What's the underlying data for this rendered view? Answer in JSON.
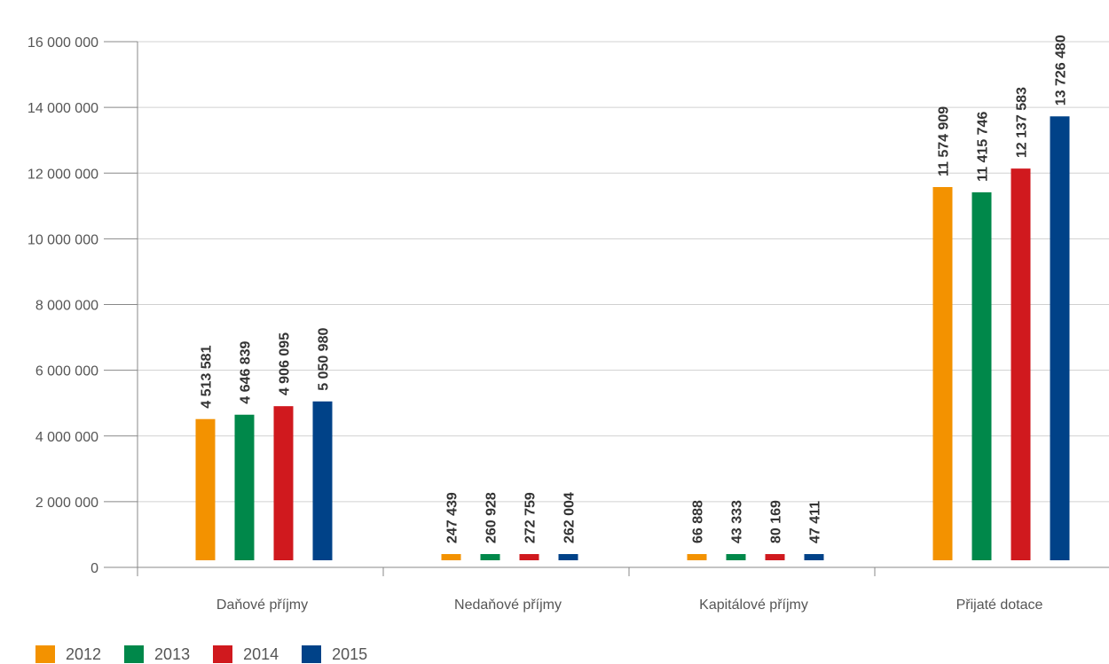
{
  "chart_data": {
    "type": "bar",
    "categories": [
      "Daňové příjmy",
      "Nedaňové příjmy",
      "Kapitálové příjmy",
      "Přijaté dotace"
    ],
    "series": [
      {
        "name": "2012",
        "color": "#f39200",
        "values": [
          4513581,
          247439,
          66888,
          11574909
        ],
        "labels": [
          "4 513 581",
          "247 439",
          "66 888",
          "11 574 909"
        ]
      },
      {
        "name": "2013",
        "color": "#00884a",
        "values": [
          4646839,
          260928,
          43333,
          11415746
        ],
        "labels": [
          "4 646 839",
          "260 928",
          "43 333",
          "11 415 746"
        ]
      },
      {
        "name": "2014",
        "color": "#d0191e",
        "values": [
          4906095,
          272759,
          80169,
          12137583
        ],
        "labels": [
          "4 906 095",
          "272 759",
          "80 169",
          "12 137 583"
        ]
      },
      {
        "name": "2015",
        "color": "#004288",
        "values": [
          5050980,
          262004,
          47411,
          13726480
        ],
        "labels": [
          "5 050 980",
          "262 004",
          "47 411",
          "13 726 480"
        ]
      }
    ],
    "ylim": [
      0,
      16000000
    ],
    "yticks": [
      0,
      2000000,
      4000000,
      6000000,
      8000000,
      10000000,
      12000000,
      14000000,
      16000000
    ],
    "ytick_labels": [
      "0",
      "2 000 000",
      "4 000 000",
      "6 000 000",
      "8 000 000",
      "10 000 000",
      "12 000 000",
      "14 000 000",
      "16 000 000"
    ],
    "grid": true,
    "legend_position": "bottom-left",
    "title": "",
    "xlabel": "",
    "ylabel": ""
  }
}
